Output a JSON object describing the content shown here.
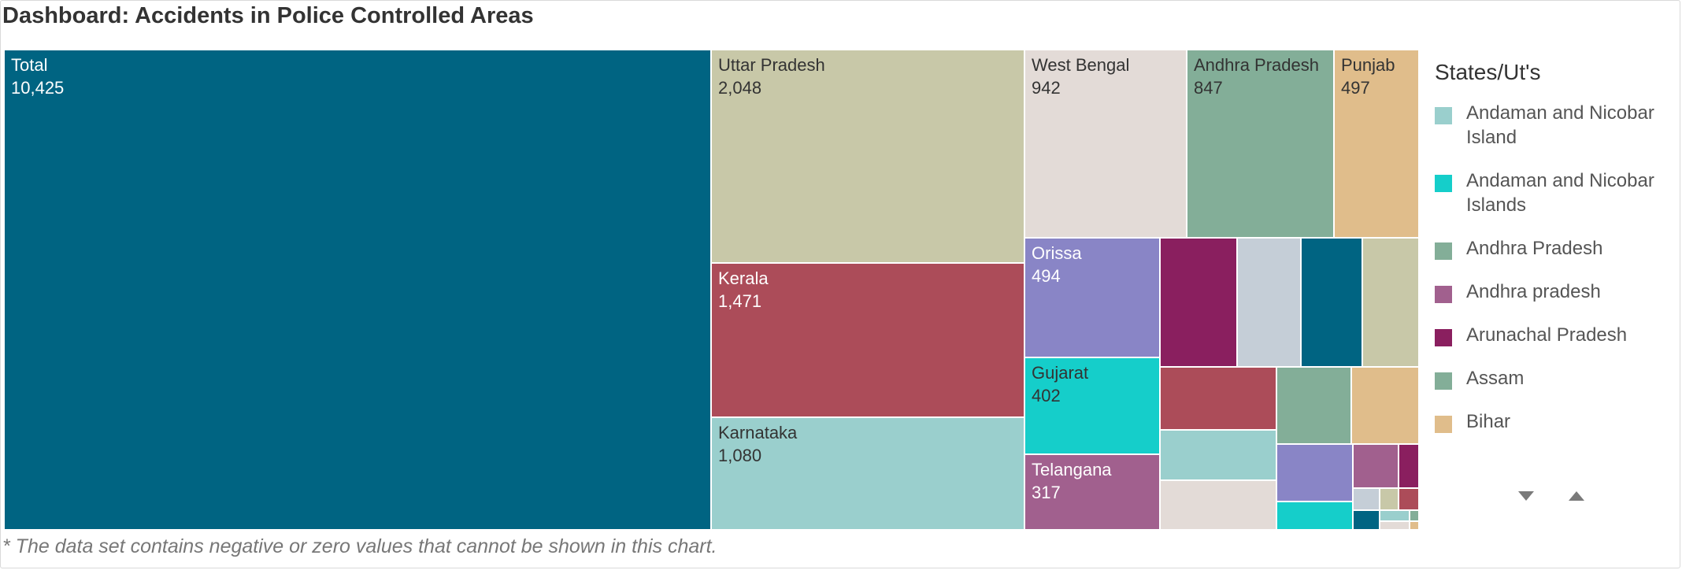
{
  "page": {
    "title": "Dashboard: Accidents in Police Controlled Areas"
  },
  "footnote": "* The data set contains negative or zero values that cannot be shown in this chart.",
  "chart_data": {
    "type": "treemap",
    "legend_title": "States/Ut's",
    "legend_placement": "right",
    "labeled_tiles": [
      {
        "label": "Total",
        "value": 10425,
        "value_text": "10,425",
        "color": "#006482"
      },
      {
        "label": "Uttar Pradesh",
        "value": 2048,
        "value_text": "2,048",
        "color": "#c8c8a8"
      },
      {
        "label": "Kerala",
        "value": 1471,
        "value_text": "1,471",
        "color": "#ac4c59"
      },
      {
        "label": "Karnataka",
        "value": 1080,
        "value_text": "1,080",
        "color": "#9acfcd"
      },
      {
        "label": "West Bengal",
        "value": 942,
        "value_text": "942",
        "color": "#e3dbd7"
      },
      {
        "label": "Andhra Pradesh",
        "value": 847,
        "value_text": "847",
        "color": "#83ae98"
      },
      {
        "label": "Punjab",
        "value": 497,
        "value_text": "497",
        "color": "#e0bd8b"
      },
      {
        "label": "Orissa",
        "value": 494,
        "value_text": "494",
        "color": "#8985c6"
      },
      {
        "label": "Gujarat",
        "value": 402,
        "value_text": "402",
        "color": "#15ceca"
      },
      {
        "label": "Telangana",
        "value": 317,
        "value_text": "317",
        "color": "#a1608e"
      }
    ],
    "unlabeled_tile_colors": [
      "#8a1f5f",
      "#c5ced7",
      "#006482",
      "#c8c8a8",
      "#ac4c59",
      "#83ae98",
      "#e0bd8b",
      "#9acfcd",
      "#8985c6",
      "#a1608e",
      "#8a1f5f",
      "#e3dbd7",
      "#15ceca",
      "#c5ced7",
      "#c8c8a8",
      "#ac4c59",
      "#006482",
      "#9acfcd",
      "#83ae98",
      "#e3dbd7",
      "#e0bd8b"
    ],
    "legend_entries": [
      {
        "name": "Andaman and Nicobar Island",
        "color": "#9acfcd"
      },
      {
        "name": "Andaman and Nicobar Islands",
        "color": "#15ceca"
      },
      {
        "name": "Andhra Pradesh",
        "color": "#83ae98"
      },
      {
        "name": "Andhra pradesh",
        "color": "#a1608e"
      },
      {
        "name": "Arunachal Pradesh",
        "color": "#8a1f5f"
      },
      {
        "name": "Assam",
        "color": "#83ae98"
      },
      {
        "name": "Bihar",
        "color": "#e0bd8b"
      }
    ]
  }
}
